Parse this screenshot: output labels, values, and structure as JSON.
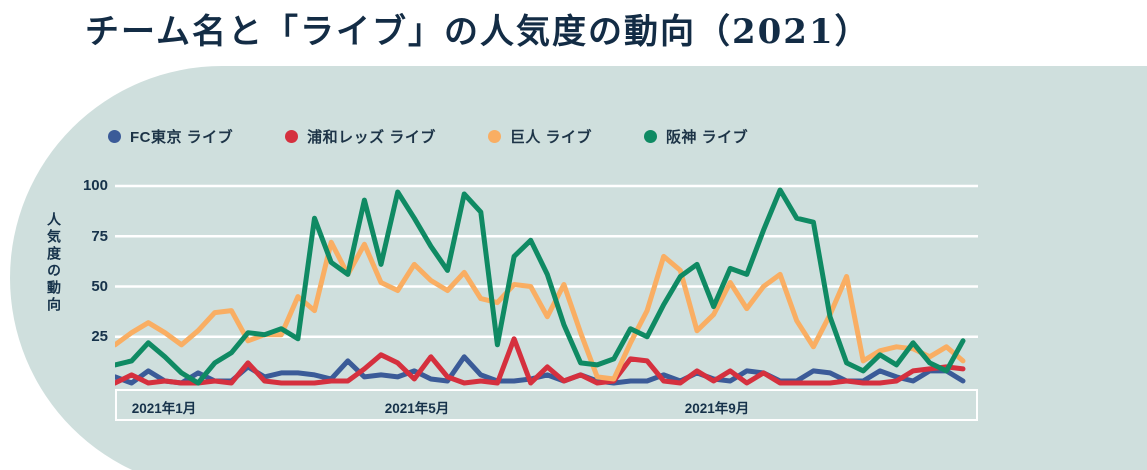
{
  "title": "チーム名と「ライブ」の人気度の動向（2021）",
  "colors": {
    "background": "#cfdfdd",
    "page": "#ffffff",
    "grid": "#ffffff",
    "text": "#16324a"
  },
  "y_axis": {
    "title": "人気度の動向",
    "ticks": [
      "100",
      "75",
      "50",
      "25"
    ]
  },
  "x_axis": {
    "labels": [
      "2021年1月",
      "2021年5月",
      "2021年9月"
    ]
  },
  "chart_data": {
    "type": "line",
    "title": "チーム名と「ライブ」の人気度の動向（2021）",
    "xlabel": "",
    "ylabel": "人気度の動向",
    "ylim": [
      0,
      100
    ],
    "grid": true,
    "y_gridlines": [
      25,
      50,
      75,
      100
    ],
    "legend_position": "top",
    "x": "weekly, 2021-01 to 2021-12, 52 points",
    "x_tick_labels": [
      "2021年1月",
      "2021年5月",
      "2021年9月"
    ],
    "series": [
      {
        "id": "fc-tokyo",
        "name": "FC東京 ライブ",
        "color": "#3b5b98",
        "values": [
          5,
          2,
          8,
          3,
          2,
          7,
          3,
          3,
          10,
          5,
          7,
          7,
          6,
          4,
          13,
          5,
          6,
          5,
          8,
          4,
          3,
          15,
          6,
          3,
          3,
          4,
          6,
          3,
          6,
          3,
          2,
          3,
          3,
          6,
          3,
          7,
          4,
          3,
          8,
          7,
          3,
          3,
          8,
          7,
          3,
          3,
          8,
          5,
          3,
          8,
          8,
          3
        ]
      },
      {
        "id": "urawa-reds",
        "name": "浦和レッズ ライブ",
        "color": "#d5303e",
        "values": [
          2,
          6,
          2,
          3,
          2,
          2,
          3,
          2,
          12,
          3,
          2,
          2,
          2,
          3,
          3,
          9,
          16,
          12,
          4,
          15,
          5,
          2,
          3,
          2,
          24,
          2,
          10,
          3,
          6,
          2,
          3,
          14,
          13,
          3,
          2,
          8,
          3,
          8,
          2,
          7,
          2,
          2,
          2,
          2,
          3,
          2,
          2,
          3,
          8,
          9,
          10,
          9
        ]
      },
      {
        "id": "kyojin",
        "name": "巨人 ライブ",
        "color": "#f9ae63",
        "values": [
          21,
          27,
          32,
          27,
          21,
          28,
          37,
          38,
          23,
          26,
          26,
          45,
          38,
          72,
          56,
          71,
          52,
          48,
          61,
          53,
          48,
          57,
          44,
          42,
          51,
          50,
          35,
          51,
          27,
          5,
          4,
          22,
          38,
          65,
          58,
          28,
          36,
          52,
          39,
          50,
          56,
          33,
          20,
          36,
          55,
          13,
          18,
          20,
          19,
          15,
          20,
          13
        ]
      },
      {
        "id": "hanshin",
        "name": "阪神 ライブ",
        "color": "#0f8a63",
        "values": [
          11,
          13,
          22,
          15,
          7,
          2,
          12,
          17,
          27,
          26,
          29,
          24,
          84,
          62,
          56,
          93,
          61,
          97,
          84,
          70,
          58,
          96,
          87,
          21,
          65,
          73,
          56,
          31,
          12,
          11,
          14,
          29,
          25,
          41,
          55,
          61,
          40,
          59,
          56,
          78,
          98,
          84,
          82,
          35,
          12,
          8,
          16,
          11,
          22,
          12,
          8,
          23
        ]
      }
    ]
  }
}
